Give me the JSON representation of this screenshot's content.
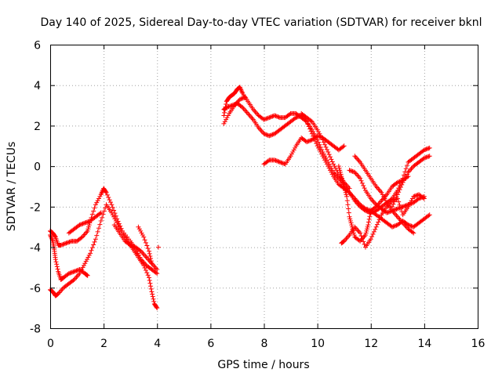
{
  "chart_data": {
    "type": "scatter",
    "title": "Day 140 of 2025, Sidereal Day-to-day VTEC variation (SDTVAR) for receiver bknl",
    "xlabel": "GPS time / hours",
    "ylabel": "SDTVAR / TECUs",
    "xlim": [
      0,
      16
    ],
    "ylim": [
      -8,
      6
    ],
    "xticks": [
      "0",
      "2",
      "4",
      "6",
      "8",
      "10",
      "12",
      "14",
      "16"
    ],
    "yticks": [
      "-8",
      "-6",
      "-4",
      "-2",
      "0",
      "2",
      "4",
      "6"
    ],
    "grid": true,
    "marker": "plus",
    "color": "#ff0000",
    "series": [
      {
        "x": [
          0.0,
          0.1,
          0.2,
          0.3,
          0.4,
          0.6,
          0.8,
          1.0,
          1.2,
          1.4,
          1.5,
          1.7,
          1.9,
          2.0,
          2.1,
          2.3,
          2.5,
          2.7,
          3.0,
          3.2,
          3.4,
          3.6,
          3.8,
          4.0
        ],
        "y": [
          -3.2,
          -3.3,
          -3.5,
          -3.9,
          -3.9,
          -3.8,
          -3.7,
          -3.7,
          -3.5,
          -3.2,
          -2.7,
          -1.9,
          -1.4,
          -1.1,
          -1.3,
          -1.9,
          -2.6,
          -3.2,
          -3.7,
          -4.1,
          -4.6,
          -4.9,
          -5.1,
          -5.3
        ]
      },
      {
        "x": [
          0.0,
          0.1,
          0.2,
          0.3,
          0.5,
          0.7,
          0.9,
          1.1,
          1.3,
          1.5,
          1.7,
          1.9,
          2.1,
          2.3,
          2.5,
          2.7,
          2.9,
          3.1,
          3.3,
          3.5,
          3.7,
          3.8,
          3.9,
          4.0
        ],
        "y": [
          -6.1,
          -6.2,
          -6.4,
          -6.3,
          -6.0,
          -5.8,
          -5.6,
          -5.3,
          -4.8,
          -4.3,
          -3.6,
          -2.7,
          -1.9,
          -2.3,
          -2.8,
          -3.3,
          -3.7,
          -4.1,
          -4.5,
          -4.9,
          -5.5,
          -6.2,
          -6.8,
          -7.0
        ]
      },
      {
        "x": [
          0.0,
          0.1,
          0.15,
          0.2,
          0.3,
          0.4,
          0.5,
          0.7,
          0.9,
          1.1,
          1.3,
          1.4
        ],
        "y": [
          -3.4,
          -3.7,
          -4.1,
          -4.6,
          -5.2,
          -5.6,
          -5.5,
          -5.3,
          -5.2,
          -5.1,
          -5.3,
          -5.4
        ]
      },
      {
        "x": [
          0.7,
          0.9,
          1.1,
          1.3,
          1.5,
          1.7,
          1.9
        ],
        "y": [
          -3.3,
          -3.1,
          -2.9,
          -2.8,
          -2.7,
          -2.5,
          -2.3
        ]
      },
      {
        "x": [
          2.4,
          2.6,
          2.8,
          3.0,
          3.2,
          3.4,
          3.6,
          3.8,
          4.0
        ],
        "y": [
          -2.9,
          -3.3,
          -3.7,
          -3.9,
          -4.0,
          -4.2,
          -4.5,
          -4.8,
          -5.1
        ]
      },
      {
        "x": [
          3.3,
          3.5,
          3.7,
          3.8
        ],
        "y": [
          -3.0,
          -3.5,
          -4.2,
          -4.8
        ]
      },
      {
        "x": [
          4.05
        ],
        "y": [
          -4.0
        ]
      },
      {
        "x": [
          6.5,
          6.6,
          6.7,
          6.8,
          6.9,
          7.0,
          7.1,
          7.2,
          7.4,
          7.6,
          7.8,
          8.0,
          8.2,
          8.4,
          8.6,
          8.8,
          9.0,
          9.2,
          9.4,
          9.6,
          9.8,
          10.0,
          10.2,
          10.4,
          10.6,
          10.8,
          11.0,
          11.2,
          11.4,
          11.6,
          11.8,
          12.0,
          12.2,
          12.4,
          12.6,
          12.8,
          13.0,
          13.2,
          13.4,
          13.6,
          13.8,
          14.0,
          14.2
        ],
        "y": [
          2.5,
          3.2,
          3.4,
          3.5,
          3.6,
          3.8,
          3.9,
          3.6,
          3.2,
          2.8,
          2.5,
          2.3,
          2.4,
          2.5,
          2.4,
          2.4,
          2.6,
          2.6,
          2.4,
          2.2,
          1.8,
          1.3,
          0.7,
          0.2,
          -0.3,
          -0.6,
          -0.9,
          -1.3,
          -1.7,
          -2.0,
          -2.2,
          -2.3,
          -2.2,
          -2.0,
          -1.8,
          -1.6,
          -1.2,
          -0.6,
          0.2,
          0.4,
          0.6,
          0.8,
          0.9
        ]
      },
      {
        "x": [
          6.5,
          6.6,
          6.8,
          7.0,
          7.2,
          7.4,
          7.6,
          7.8,
          8.0,
          8.2,
          8.4,
          8.6,
          8.8,
          9.0,
          9.2,
          9.4,
          9.6,
          9.8,
          10.0,
          10.2,
          10.4,
          10.6,
          10.8,
          11.0,
          11.2,
          11.4,
          11.6,
          11.8,
          12.0,
          12.2,
          12.4,
          12.6,
          12.8,
          13.0,
          13.2,
          13.4,
          13.6,
          13.8,
          14.0,
          14.2
        ],
        "y": [
          2.8,
          2.9,
          3.0,
          3.1,
          2.9,
          2.6,
          2.3,
          1.9,
          1.6,
          1.5,
          1.6,
          1.8,
          2.0,
          2.2,
          2.4,
          2.5,
          2.2,
          1.6,
          1.0,
          0.5,
          0.0,
          -0.5,
          -0.9,
          -1.1,
          -1.3,
          -1.6,
          -1.9,
          -2.1,
          -2.2,
          -2.4,
          -2.6,
          -2.8,
          -3.0,
          -2.9,
          -2.7,
          -2.9,
          -3.0,
          -2.8,
          -2.6,
          -2.4
        ]
      },
      {
        "x": [
          6.5,
          6.7,
          6.9,
          7.1,
          7.3
        ],
        "y": [
          2.1,
          2.6,
          3.0,
          3.3,
          3.4
        ]
      },
      {
        "x": [
          8.0,
          8.2,
          8.4,
          8.6,
          8.8,
          9.0,
          9.2,
          9.4,
          9.6,
          9.8,
          10.0,
          10.2,
          10.4,
          10.6,
          10.8,
          11.0
        ],
        "y": [
          0.1,
          0.3,
          0.3,
          0.2,
          0.1,
          0.5,
          1.0,
          1.4,
          1.2,
          1.3,
          1.5,
          1.4,
          1.2,
          1.0,
          0.8,
          1.0
        ]
      },
      {
        "x": [
          10.8,
          10.9,
          11.0,
          11.1,
          11.2,
          11.3,
          11.4,
          11.6,
          11.8,
          11.9,
          12.0,
          12.2,
          12.4,
          12.6,
          12.8,
          13.0,
          13.2,
          13.4
        ],
        "y": [
          0.0,
          -0.5,
          -1.0,
          -1.5,
          -2.5,
          -3.0,
          -3.5,
          -3.7,
          -3.4,
          -2.9,
          -2.2,
          -2.0,
          -1.7,
          -1.4,
          -1.0,
          -0.8,
          -0.7,
          -0.5
        ]
      },
      {
        "x": [
          10.9,
          11.0,
          11.2,
          11.4,
          11.6,
          11.8,
          12.0,
          12.2,
          12.4,
          12.6,
          12.8,
          13.0,
          13.2,
          13.4,
          13.6,
          13.8,
          14.0
        ],
        "y": [
          -3.8,
          -3.7,
          -3.4,
          -3.0,
          -3.3,
          -4.0,
          -3.6,
          -3.0,
          -2.4,
          -2.0,
          -1.7,
          -1.6,
          -2.4,
          -2.0,
          -1.5,
          -1.4,
          -1.6
        ]
      },
      {
        "x": [
          11.2,
          11.4,
          11.6,
          11.8,
          12.0,
          12.2,
          12.4,
          12.6,
          12.8,
          13.0,
          13.2,
          13.4,
          13.6,
          13.8,
          14.0
        ],
        "y": [
          -0.2,
          -0.3,
          -0.6,
          -1.2,
          -1.6,
          -1.9,
          -2.1,
          -2.3,
          -2.2,
          -2.1,
          -2.0,
          -1.9,
          -1.8,
          -1.6,
          -1.5
        ]
      },
      {
        "x": [
          11.4,
          11.6,
          11.8,
          12.0,
          12.2,
          12.4,
          12.6,
          12.8,
          13.0,
          13.2,
          13.4,
          13.6
        ],
        "y": [
          0.5,
          0.2,
          -0.2,
          -0.6,
          -1.0,
          -1.3,
          -1.8,
          -2.2,
          -2.5,
          -2.8,
          -3.1,
          -3.3
        ]
      },
      {
        "x": [
          12.8,
          13.0,
          13.2,
          13.4,
          13.6,
          13.8,
          14.0,
          14.2
        ],
        "y": [
          -2.0,
          -1.4,
          -0.8,
          -0.3,
          0.0,
          0.2,
          0.4,
          0.5
        ]
      },
      {
        "x": [
          9.4,
          9.6,
          9.8,
          10.0,
          10.2,
          10.4,
          10.6,
          10.8,
          11.0,
          11.2
        ],
        "y": [
          2.6,
          2.4,
          2.2,
          1.8,
          1.3,
          0.7,
          0.1,
          -0.4,
          -0.8,
          -1.1
        ]
      }
    ]
  }
}
